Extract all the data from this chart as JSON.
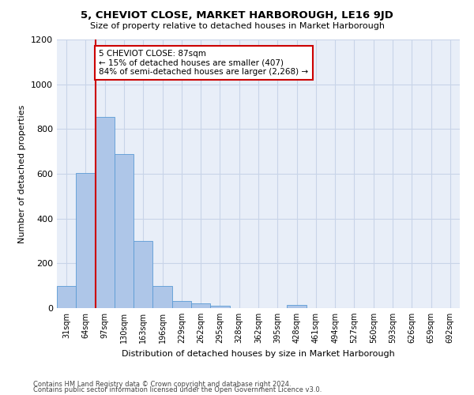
{
  "title": "5, CHEVIOT CLOSE, MARKET HARBOROUGH, LE16 9JD",
  "subtitle": "Size of property relative to detached houses in Market Harborough",
  "xlabel": "Distribution of detached houses by size in Market Harborough",
  "ylabel": "Number of detached properties",
  "footer1": "Contains HM Land Registry data © Crown copyright and database right 2024.",
  "footer2": "Contains public sector information licensed under the Open Government Licence v3.0.",
  "categories": [
    "31sqm",
    "64sqm",
    "97sqm",
    "130sqm",
    "163sqm",
    "196sqm",
    "229sqm",
    "262sqm",
    "295sqm",
    "328sqm",
    "362sqm",
    "395sqm",
    "428sqm",
    "461sqm",
    "494sqm",
    "527sqm",
    "560sqm",
    "593sqm",
    "626sqm",
    "659sqm",
    "692sqm"
  ],
  "values": [
    100,
    605,
    855,
    690,
    300,
    100,
    32,
    22,
    10,
    0,
    0,
    0,
    15,
    0,
    0,
    0,
    0,
    0,
    0,
    0,
    0
  ],
  "bar_color": "#aec6e8",
  "bar_edge_color": "#5b9bd5",
  "highlight_line_index": 2,
  "highlight_line_color": "#cc0000",
  "annotation_text": "5 CHEVIOT CLOSE: 87sqm\n← 15% of detached houses are smaller (407)\n84% of semi-detached houses are larger (2,268) →",
  "annotation_box_color": "#ffffff",
  "annotation_box_edge_color": "#cc0000",
  "ylim": [
    0,
    1200
  ],
  "yticks": [
    0,
    200,
    400,
    600,
    800,
    1000,
    1200
  ],
  "grid_color": "#c8d4e8",
  "background_color": "#ffffff",
  "plot_bg_color": "#e8eef8"
}
